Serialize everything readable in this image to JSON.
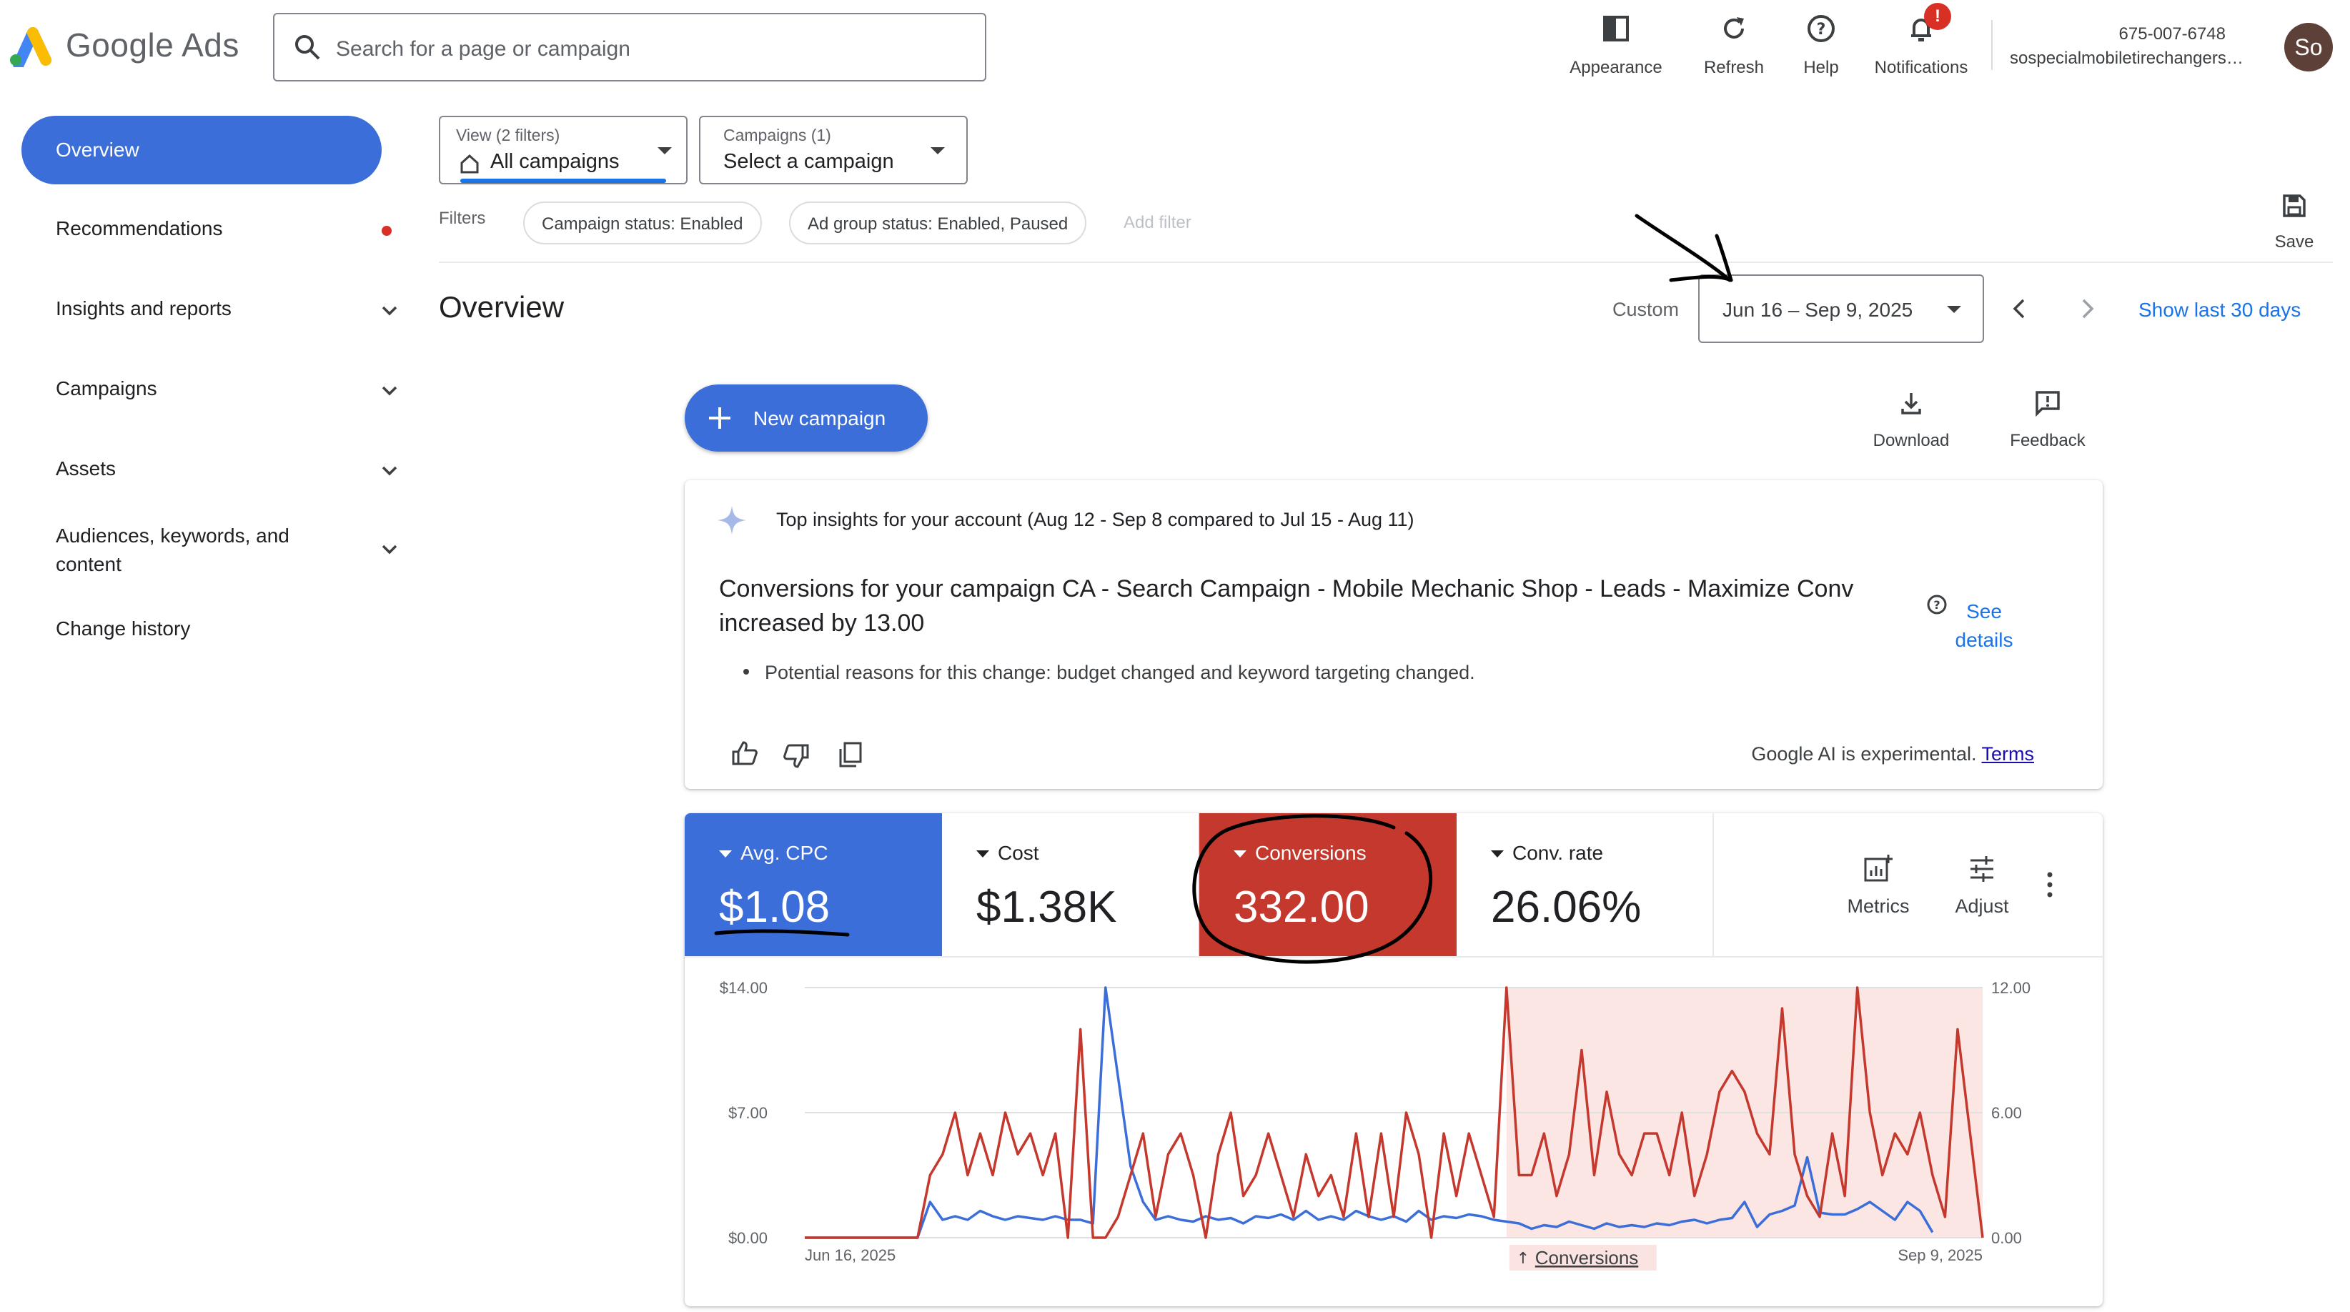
{
  "header": {
    "logo_text": "Google Ads",
    "search_placeholder": "Search for a page or campaign",
    "tools": [
      {
        "label": "Appearance"
      },
      {
        "label": "Refresh"
      },
      {
        "label": "Help"
      },
      {
        "label": "Notifications",
        "badge": "!"
      }
    ],
    "account": {
      "phone": "675-007-6748",
      "name": "sospecialmobiletirechangers…",
      "avatar": "So"
    }
  },
  "sidebar": {
    "items": [
      {
        "label": "Overview",
        "active": true
      },
      {
        "label": "Recommendations"
      },
      {
        "label": "Insights and reports"
      },
      {
        "label": "Campaigns"
      },
      {
        "label": "Assets"
      },
      {
        "label": "Audiences, keywords, and content"
      },
      {
        "label": "Change history"
      }
    ]
  },
  "filters": {
    "view": {
      "small": "View (2 filters)",
      "value": "All campaigns"
    },
    "campaigns": {
      "small": "Campaigns (1)",
      "value": "Select a campaign"
    },
    "label": "Filters",
    "chips": [
      "Campaign status: Enabled",
      "Ad group status: Enabled, Paused"
    ],
    "add_filter": "Add filter",
    "save_label": "Save"
  },
  "overview": {
    "title": "Overview",
    "custom_label": "Custom",
    "date_range": "Jun 16 – Sep 9, 2025",
    "show_last": "Show last 30 days",
    "new_campaign": "New campaign",
    "download": "Download",
    "feedback": "Feedback"
  },
  "insights": {
    "title": "Top insights for your account (Aug 12 - Sep 8 compared to Jul 15 - Aug 11)",
    "headline": "Conversions for your campaign CA - Search Campaign - Mobile Mechanic Shop - Leads - Maximize Conv increased by 13.00",
    "reason": "Potential reasons for this change: budget changed and keyword targeting changed.",
    "see_details": "See details",
    "ai_note": "Google AI is experimental.",
    "terms": "Terms"
  },
  "metrics": {
    "cards": [
      {
        "label": "Avg. CPC",
        "value": "$1.08",
        "color": "#3b6ed9"
      },
      {
        "label": "Cost",
        "value": "$1.38K"
      },
      {
        "label": "Conversions",
        "value": "332.00",
        "color": "#c5382d"
      },
      {
        "label": "Conv. rate",
        "value": "26.06%"
      }
    ],
    "metrics_label": "Metrics",
    "adjust_label": "Adjust"
  },
  "chart_data": {
    "type": "line",
    "x_start": "Jun 16, 2025",
    "x_end": "Sep 9, 2025",
    "left_axis": {
      "ticks": [
        "$14.00",
        "$7.00",
        "$0.00"
      ],
      "range": [
        0,
        14
      ]
    },
    "right_axis": {
      "ticks": [
        "12.00",
        "6.00",
        "0.00"
      ],
      "range": [
        0,
        12
      ]
    },
    "highlight_label": "Conversions",
    "highlight_range_days": [
      56,
      85
    ],
    "series": [
      {
        "name": "Avg. CPC",
        "color": "#3b6ed9",
        "axis": "left",
        "values": [
          0,
          0,
          0,
          0,
          0,
          0,
          0,
          0,
          0,
          0,
          2.0,
          1.0,
          1.2,
          1.0,
          1.5,
          1.2,
          1.0,
          1.2,
          1.1,
          1.0,
          1.2,
          1.0,
          1.0,
          0.8,
          14.0,
          9.0,
          4.0,
          2.0,
          1.0,
          1.2,
          1.0,
          0.9,
          1.2,
          1.0,
          1.1,
          0.8,
          1.2,
          1.1,
          1.3,
          1.0,
          1.5,
          1.0,
          1.2,
          1.0,
          1.5,
          1.2,
          1.0,
          1.2,
          0.9,
          1.5,
          1.0,
          1.2,
          1.1,
          1.3,
          1.2,
          1.0,
          0.9,
          0.8,
          0.5,
          0.7,
          0.6,
          0.9,
          0.7,
          0.5,
          0.8,
          0.6,
          0.7,
          0.6,
          0.8,
          0.7,
          0.9,
          1.0,
          0.8,
          1.0,
          1.1,
          2.0,
          0.6,
          1.3,
          1.5,
          1.8,
          4.5,
          1.4,
          1.3,
          1.3,
          1.6,
          2.0,
          1.5,
          1.0,
          2.0,
          1.5,
          0.3
        ]
      },
      {
        "name": "Conversions",
        "color": "#c5382d",
        "axis": "right",
        "values": [
          0,
          0,
          0,
          0,
          0,
          0,
          0,
          0,
          0,
          0,
          3,
          4,
          6,
          3,
          5,
          3,
          6,
          4,
          5,
          3,
          5,
          0,
          10,
          0,
          0,
          1,
          3,
          5,
          1,
          4,
          5,
          3,
          0,
          4,
          6,
          2,
          3,
          5,
          3,
          1,
          4,
          2,
          3,
          1,
          5,
          1,
          5,
          1,
          6,
          4,
          0,
          5,
          2,
          5,
          3,
          1,
          12,
          3,
          3,
          5,
          2,
          4,
          9,
          3,
          7,
          4,
          3,
          5,
          5,
          3,
          6,
          2,
          4,
          7,
          8,
          7,
          5,
          4,
          11,
          4,
          2,
          1,
          5,
          2,
          12,
          6,
          3,
          5,
          4,
          6,
          3,
          1,
          10,
          5,
          0
        ]
      }
    ]
  }
}
